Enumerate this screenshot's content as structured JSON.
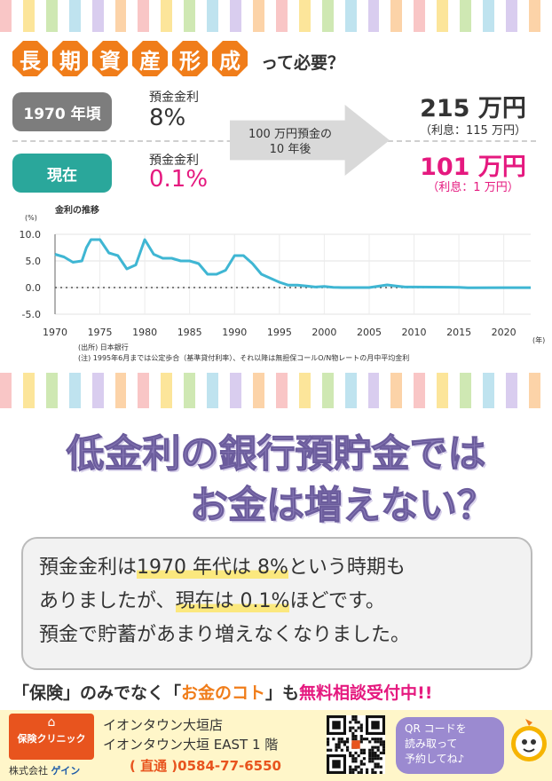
{
  "colors": {
    "orange": "#f07d1a",
    "pink": "#e5197f",
    "teal": "#2aa79b",
    "gray_pill": "#7d7d7d",
    "purple": "#8a7bb8",
    "line": "#3fb6d3",
    "stripes": [
      "#f9c6c6",
      "#fce59a",
      "#cfe8b3",
      "#bfe3ef",
      "#d9cdef",
      "#fcd3a8"
    ]
  },
  "header": {
    "title_chars": [
      "長",
      "期",
      "資",
      "産",
      "形",
      "成"
    ],
    "title_rest": "って必要？"
  },
  "compare": {
    "past": {
      "label": "1970 年頃",
      "rate_label": "預金金利",
      "rate": "8%"
    },
    "now": {
      "label": "現在",
      "rate_label": "預金金利",
      "rate": "0.1%"
    },
    "arrow_line1": "100 万円預金の",
    "arrow_line2": "10 年後",
    "result_past": {
      "amount": "215 万円",
      "interest": "（利息：115 万円）"
    },
    "result_now": {
      "amount": "101 万円",
      "interest": "（利息：1 万円）"
    }
  },
  "chart_data": {
    "type": "line",
    "title": "金利の推移",
    "ylabel": "(%)",
    "xlabel": "(年)",
    "xlim": [
      1970,
      2023
    ],
    "ylim": [
      -5,
      10
    ],
    "yticks": [
      "10.0",
      "5.0",
      "0.0",
      "-5.0"
    ],
    "xticks": [
      "1970",
      "1975",
      "1980",
      "1985",
      "1990",
      "1995",
      "2000",
      "2005",
      "2010",
      "2015",
      "2020"
    ],
    "grid": true,
    "series": [
      {
        "x": [
          1970,
          1971,
          1972,
          1973,
          1973.5,
          1974,
          1975,
          1976,
          1977,
          1978,
          1979,
          1980,
          1981,
          1982,
          1983,
          1984,
          1985,
          1986,
          1987,
          1988,
          1989,
          1990,
          1991,
          1992,
          1993,
          1994,
          1995,
          1996,
          1997,
          1998,
          1999,
          2000,
          2001,
          2002,
          2005,
          2006,
          2007,
          2008,
          2009,
          2010,
          2015,
          2016,
          2020,
          2023
        ],
        "values": [
          6.25,
          5.75,
          4.75,
          5.0,
          7.5,
          9.0,
          9.0,
          6.5,
          6.0,
          3.5,
          4.25,
          9.0,
          6.25,
          5.5,
          5.5,
          5.0,
          5.0,
          4.5,
          2.5,
          2.5,
          3.25,
          6.0,
          6.0,
          4.5,
          2.5,
          1.75,
          1.0,
          0.45,
          0.45,
          0.3,
          0.1,
          0.2,
          0.05,
          0.0,
          0.0,
          0.25,
          0.5,
          0.3,
          0.1,
          0.1,
          0.05,
          -0.05,
          -0.02,
          -0.02
        ]
      }
    ],
    "notes": [
      "(出所) 日本銀行",
      "(注) 1995年6月までは公定歩合（基準貸付利率）、それ以降は無担保コールO/N物レートの月中平均金利"
    ]
  },
  "headline": {
    "line1": "低金利の銀行預貯金では",
    "line2": "お金は増えない？"
  },
  "body": {
    "l1_a": "預金金利は",
    "l1_hl": "1970 年代は 8%",
    "l1_b": "という時期も",
    "l2_a": "ありましたが、",
    "l2_hl": "現在は 0.1%",
    "l2_b": "ほどです。",
    "l3": "預金で貯蓄があまり増えなくなりました。"
  },
  "cta": {
    "p1": "「保険」のみでなく「",
    "p2": "お金のコト",
    "p3": "」も",
    "p4": "無料相談受付中",
    "p5": "!!"
  },
  "footer": {
    "logo_text": "保険クリニック",
    "company_prefix": "株式会社",
    "company_name": "ゲイン",
    "store_line1": "イオンタウン大垣店",
    "store_line2": "イオンタウン大垣 EAST 1 階",
    "phone": "( 直通 )0584-77-6550",
    "bubble_l1": "QR コードを",
    "bubble_l2": "読み取って",
    "bubble_l3": "予約してね♪",
    "icons": [
      "house-icon",
      "qr-code",
      "mascot-icon"
    ]
  }
}
